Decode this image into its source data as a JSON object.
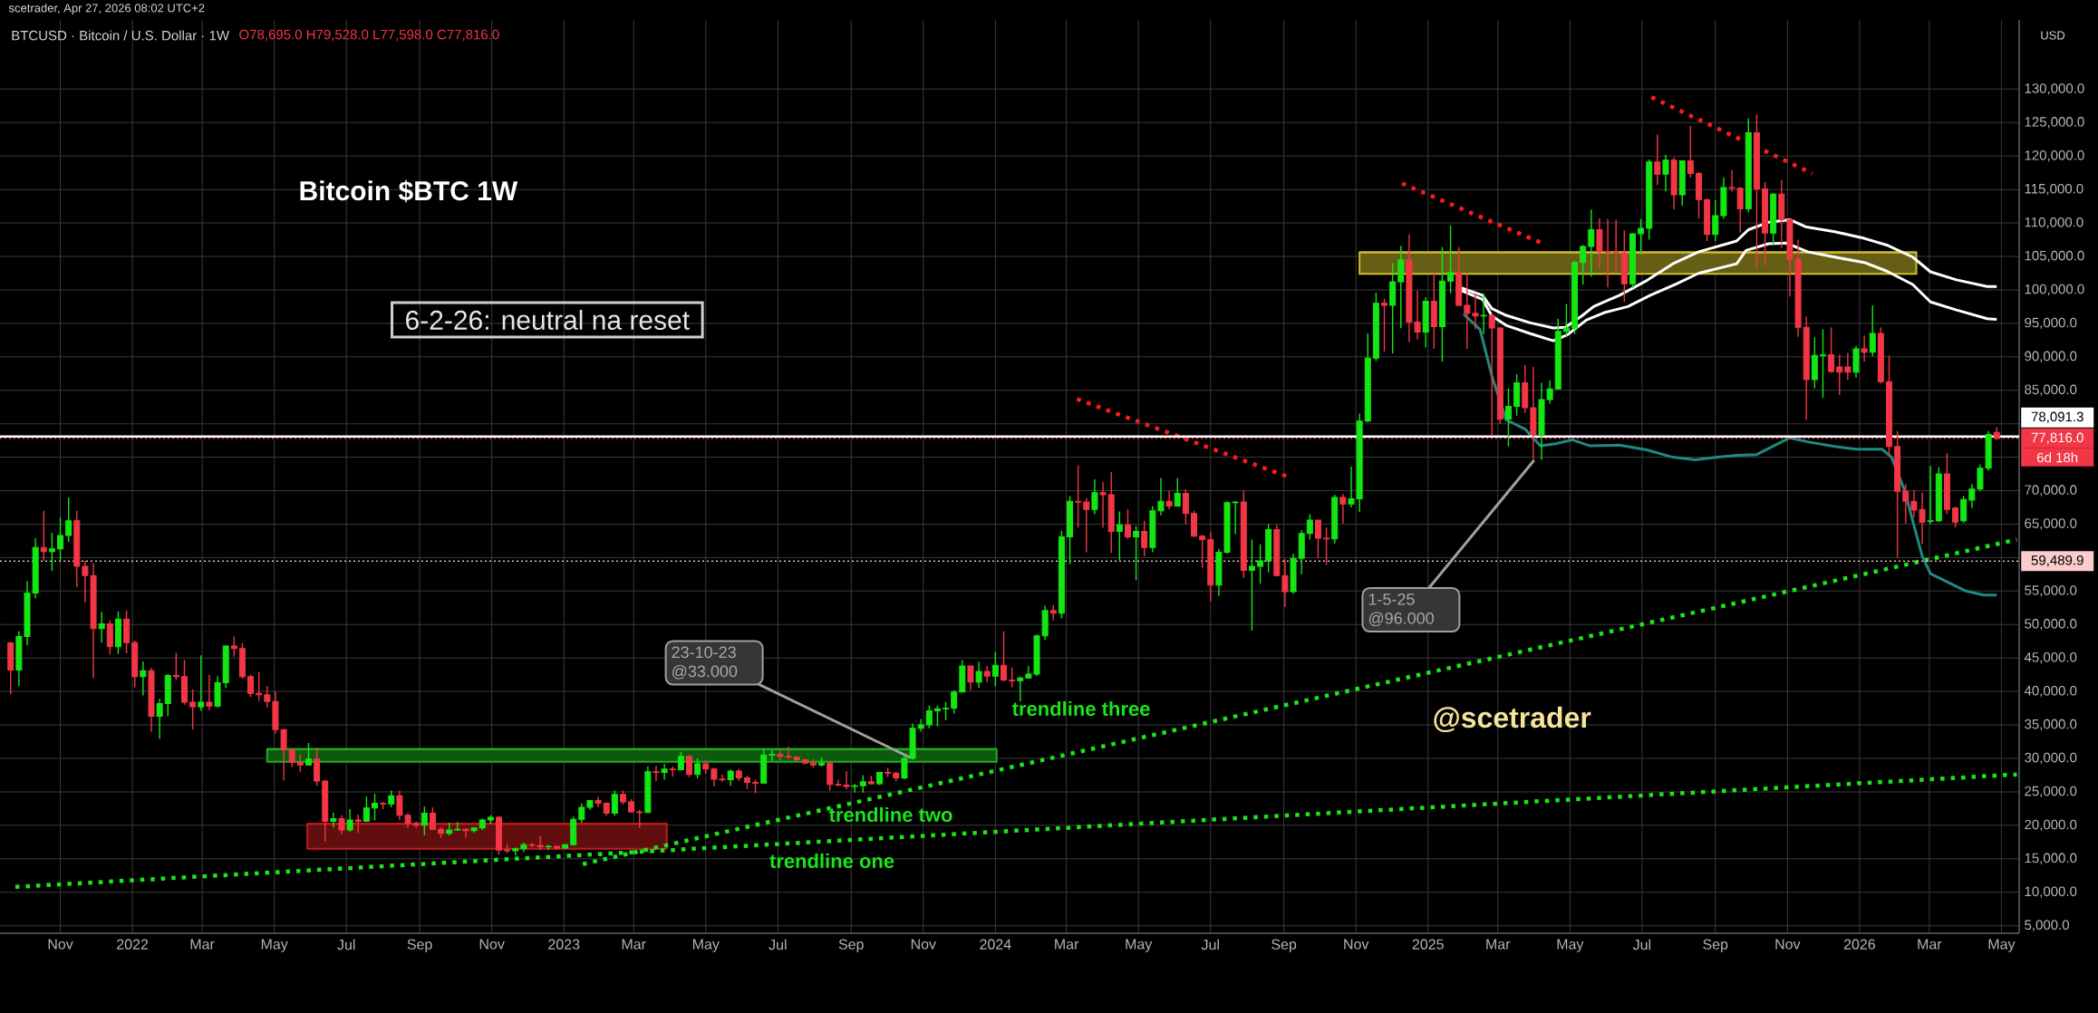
{
  "chart_data": {
    "type": "candlestick",
    "title": "BTCUSD · Bitcoin / U.S. Dollar · 1W",
    "subtitle": "O78,695.0 H79,528.0 L77,598.0 C77,816.0",
    "ylabel": "USD",
    "x": [
      "2021-09-20",
      "2021-09-27",
      "2021-10-04",
      "2021-10-11",
      "2021-10-18",
      "2021-10-25",
      "2021-11-01",
      "2021-11-08",
      "2021-11-15",
      "2021-11-22",
      "2021-11-29",
      "2021-12-06",
      "2021-12-13",
      "2021-12-20",
      "2021-12-27",
      "2022-01-03",
      "2022-01-10",
      "2022-01-17",
      "2022-01-24",
      "2022-01-31",
      "2022-02-07",
      "2022-02-14",
      "2022-02-21",
      "2022-02-28",
      "2022-03-07",
      "2022-03-14",
      "2022-03-21",
      "2022-03-28",
      "2022-04-04",
      "2022-04-11",
      "2022-04-18",
      "2022-04-25",
      "2022-05-02",
      "2022-05-09",
      "2022-05-16",
      "2022-05-23",
      "2022-05-30",
      "2022-06-06",
      "2022-06-13",
      "2022-06-20",
      "2022-06-27",
      "2022-07-04",
      "2022-07-11",
      "2022-07-18",
      "2022-07-25",
      "2022-08-01",
      "2022-08-08",
      "2022-08-15",
      "2022-08-22",
      "2022-08-29",
      "2022-09-05",
      "2022-09-12",
      "2022-09-19",
      "2022-09-26",
      "2022-10-03",
      "2022-10-10",
      "2022-10-17",
      "2022-10-24",
      "2022-10-31",
      "2022-11-07",
      "2022-11-14",
      "2022-11-21",
      "2022-11-28",
      "2022-12-05",
      "2022-12-12",
      "2022-12-19",
      "2022-12-26",
      "2023-01-02",
      "2023-01-09",
      "2023-01-16",
      "2023-01-23",
      "2023-01-30",
      "2023-02-06",
      "2023-02-13",
      "2023-02-20",
      "2023-02-27",
      "2023-03-06",
      "2023-03-13",
      "2023-03-20",
      "2023-03-27",
      "2023-04-03",
      "2023-04-10",
      "2023-04-17",
      "2023-04-24",
      "2023-05-01",
      "2023-05-08",
      "2023-05-15",
      "2023-05-22",
      "2023-05-29",
      "2023-06-05",
      "2023-06-12",
      "2023-06-19",
      "2023-06-26",
      "2023-07-03",
      "2023-07-10",
      "2023-07-17",
      "2023-07-24",
      "2023-07-31",
      "2023-08-07",
      "2023-08-14",
      "2023-08-21",
      "2023-08-28",
      "2023-09-04",
      "2023-09-11",
      "2023-09-18",
      "2023-09-25",
      "2023-10-02",
      "2023-10-09",
      "2023-10-16",
      "2023-10-23",
      "2023-10-30",
      "2023-11-06",
      "2023-11-13",
      "2023-11-20",
      "2023-11-27",
      "2023-12-04",
      "2023-12-11",
      "2023-12-18",
      "2023-12-25",
      "2024-01-01",
      "2024-01-08",
      "2024-01-15",
      "2024-01-22",
      "2024-01-29",
      "2024-02-05",
      "2024-02-12",
      "2024-02-19",
      "2024-02-26",
      "2024-03-04",
      "2024-03-11",
      "2024-03-18",
      "2024-03-25",
      "2024-04-01",
      "2024-04-08",
      "2024-04-15",
      "2024-04-22",
      "2024-04-29",
      "2024-05-06",
      "2024-05-13",
      "2024-05-20",
      "2024-05-27",
      "2024-06-03",
      "2024-06-10",
      "2024-06-17",
      "2024-06-24",
      "2024-07-01",
      "2024-07-08",
      "2024-07-15",
      "2024-07-22",
      "2024-07-29",
      "2024-08-05",
      "2024-08-12",
      "2024-08-19",
      "2024-08-26",
      "2024-09-02",
      "2024-09-09",
      "2024-09-16",
      "2024-09-23",
      "2024-09-30",
      "2024-10-07",
      "2024-10-14",
      "2024-10-21",
      "2024-10-28",
      "2024-11-04",
      "2024-11-11",
      "2024-11-18",
      "2024-11-25",
      "2024-12-02",
      "2024-12-09",
      "2024-12-16",
      "2024-12-23",
      "2024-12-30",
      "2025-01-06",
      "2025-01-13",
      "2025-01-20",
      "2025-01-27",
      "2025-02-03",
      "2025-02-10",
      "2025-02-17",
      "2025-02-24",
      "2025-03-03",
      "2025-03-10",
      "2025-03-17",
      "2025-03-24",
      "2025-03-31",
      "2025-04-07",
      "2025-04-14",
      "2025-04-21",
      "2025-04-28",
      "2025-05-05",
      "2025-05-12",
      "2025-05-19",
      "2025-05-26",
      "2025-06-02",
      "2025-06-09",
      "2025-06-16",
      "2025-06-23",
      "2025-06-30",
      "2025-07-07",
      "2025-07-14",
      "2025-07-21",
      "2025-07-28",
      "2025-08-04",
      "2025-08-11",
      "2025-08-18",
      "2025-08-25",
      "2025-09-01",
      "2025-09-08",
      "2025-09-15",
      "2025-09-22",
      "2025-09-29",
      "2025-10-06",
      "2025-10-13",
      "2025-10-20",
      "2025-10-27",
      "2025-11-03",
      "2025-11-10",
      "2025-11-17",
      "2025-11-24",
      "2025-12-01",
      "2025-12-08",
      "2025-12-15",
      "2025-12-22",
      "2025-12-29",
      "2026-01-05",
      "2026-01-12",
      "2026-01-19",
      "2026-01-26",
      "2026-02-02",
      "2026-02-09",
      "2026-02-16",
      "2026-02-23",
      "2026-03-02",
      "2026-03-09",
      "2026-03-16",
      "2026-03-23",
      "2026-03-30",
      "2026-04-06",
      "2026-04-13",
      "2026-04-20",
      "2026-04-27"
    ],
    "ohlc": [
      [
        47250,
        47400,
        39600,
        43200
      ],
      [
        43200,
        49000,
        40800,
        48200
      ],
      [
        48200,
        56500,
        46900,
        54700
      ],
      [
        54700,
        62900,
        53900,
        61500
      ],
      [
        61500,
        67000,
        59500,
        60900
      ],
      [
        60900,
        63700,
        58000,
        61300
      ],
      [
        61300,
        66000,
        59500,
        63300
      ],
      [
        63300,
        69000,
        62300,
        65500
      ],
      [
        65500,
        67000,
        55600,
        58700
      ],
      [
        58700,
        59500,
        53300,
        57300
      ],
      [
        57300,
        59200,
        42000,
        49400
      ],
      [
        49400,
        51900,
        47300,
        50100
      ],
      [
        50100,
        50600,
        45500,
        46700
      ],
      [
        46700,
        52000,
        45600,
        50800
      ],
      [
        50800,
        52100,
        45700,
        47300
      ],
      [
        47300,
        47600,
        40600,
        42200
      ],
      [
        42200,
        44500,
        39400,
        43100
      ],
      [
        43100,
        43500,
        34000,
        36300
      ],
      [
        36300,
        38900,
        32900,
        38200
      ],
      [
        38200,
        42600,
        36300,
        42400
      ],
      [
        42400,
        45800,
        41700,
        42200
      ],
      [
        42200,
        44700,
        38000,
        38400
      ],
      [
        38400,
        40300,
        34300,
        37700
      ],
      [
        37700,
        45400,
        37100,
        38400
      ],
      [
        38400,
        42500,
        37200,
        37800
      ],
      [
        37800,
        42300,
        37600,
        41300
      ],
      [
        41300,
        46900,
        40500,
        46800
      ],
      [
        46800,
        48200,
        45200,
        46400
      ],
      [
        46400,
        47200,
        41900,
        42200
      ],
      [
        42200,
        42500,
        39200,
        39700
      ],
      [
        39700,
        42900,
        38600,
        39500
      ],
      [
        39500,
        40800,
        37600,
        38500
      ],
      [
        38500,
        40000,
        33700,
        34300
      ],
      [
        34300,
        34400,
        26700,
        31300
      ],
      [
        31300,
        31300,
        28700,
        29400
      ],
      [
        29400,
        30600,
        28000,
        29000
      ],
      [
        29000,
        32300,
        29000,
        29900
      ],
      [
        29900,
        31600,
        25900,
        26600
      ],
      [
        26600,
        26700,
        17600,
        20600
      ],
      [
        20600,
        21900,
        19700,
        21000
      ],
      [
        21000,
        21500,
        18700,
        19300
      ],
      [
        19300,
        22400,
        19000,
        20800
      ],
      [
        20800,
        21600,
        18900,
        20600
      ],
      [
        20600,
        24300,
        20600,
        22600
      ],
      [
        22600,
        24700,
        20700,
        23300
      ],
      [
        23300,
        23500,
        22400,
        23200
      ],
      [
        23200,
        25200,
        22700,
        24400
      ],
      [
        24400,
        25200,
        20800,
        21500
      ],
      [
        21500,
        21800,
        19600,
        20300
      ],
      [
        20300,
        20600,
        19600,
        20000
      ],
      [
        20000,
        22800,
        18500,
        21800
      ],
      [
        21800,
        22700,
        19300,
        19400
      ],
      [
        19400,
        19700,
        18100,
        18800
      ],
      [
        18800,
        20400,
        18500,
        19300
      ],
      [
        19300,
        20500,
        19200,
        19400
      ],
      [
        19400,
        19600,
        18200,
        19200
      ],
      [
        19200,
        19700,
        18900,
        19600
      ],
      [
        19600,
        21000,
        19300,
        20800
      ],
      [
        20800,
        21500,
        20200,
        21200
      ],
      [
        21200,
        21400,
        15600,
        16300
      ],
      [
        16300,
        17200,
        15800,
        16200
      ],
      [
        16200,
        16700,
        15500,
        16500
      ],
      [
        16500,
        17400,
        16000,
        17100
      ],
      [
        17100,
        17400,
        16700,
        17000
      ],
      [
        17000,
        18400,
        16300,
        16800
      ],
      [
        16800,
        17100,
        16300,
        16850
      ],
      [
        16850,
        16900,
        16400,
        16600
      ],
      [
        16600,
        17200,
        16500,
        17100
      ],
      [
        17100,
        21300,
        17100,
        20900
      ],
      [
        20900,
        23300,
        20400,
        22700
      ],
      [
        22700,
        23800,
        22300,
        23700
      ],
      [
        23700,
        24200,
        22700,
        23300
      ],
      [
        23300,
        23400,
        21400,
        21800
      ],
      [
        21800,
        25200,
        21400,
        24600
      ],
      [
        24600,
        25200,
        23100,
        23500
      ],
      [
        23500,
        23900,
        21900,
        22000
      ],
      [
        22000,
        22300,
        19600,
        21900
      ],
      [
        21900,
        28800,
        21900,
        28000
      ],
      [
        28000,
        28900,
        26600,
        27900
      ],
      [
        27900,
        29200,
        26800,
        28400
      ],
      [
        28400,
        28800,
        27300,
        28300
      ],
      [
        28300,
        31000,
        28200,
        30300
      ],
      [
        30300,
        30500,
        27200,
        27600
      ],
      [
        27600,
        30000,
        27000,
        29200
      ],
      [
        29200,
        29800,
        27700,
        28400
      ],
      [
        28400,
        28600,
        25800,
        26900
      ],
      [
        26900,
        27600,
        26500,
        26800
      ],
      [
        26800,
        28300,
        25900,
        28100
      ],
      [
        28100,
        28400,
        26600,
        27100
      ],
      [
        27100,
        27400,
        25400,
        26400
      ],
      [
        26400,
        26800,
        24800,
        26300
      ],
      [
        26300,
        31400,
        26300,
        30500
      ],
      [
        30500,
        31300,
        29600,
        30600
      ],
      [
        30600,
        31400,
        29700,
        30300
      ],
      [
        30300,
        31800,
        29900,
        30200
      ],
      [
        30200,
        30300,
        29500,
        29800
      ],
      [
        29800,
        29900,
        29100,
        29300
      ],
      [
        29300,
        29900,
        28600,
        29000
      ],
      [
        29000,
        30200,
        28800,
        29300
      ],
      [
        29300,
        29500,
        25200,
        26100
      ],
      [
        26100,
        26800,
        25800,
        26000
      ],
      [
        26000,
        28100,
        25400,
        25800
      ],
      [
        25800,
        26200,
        24900,
        25900
      ],
      [
        25900,
        27500,
        24900,
        26500
      ],
      [
        26500,
        27400,
        26100,
        26200
      ],
      [
        26200,
        28000,
        26000,
        27900
      ],
      [
        27900,
        28600,
        27200,
        27800
      ],
      [
        27800,
        28000,
        26600,
        27100
      ],
      [
        27100,
        30400,
        26900,
        30000
      ],
      [
        30000,
        35200,
        29800,
        34500
      ],
      [
        34500,
        35900,
        34000,
        35000
      ],
      [
        35000,
        37900,
        34500,
        37100
      ],
      [
        37100,
        37900,
        34800,
        37400
      ],
      [
        37400,
        38400,
        35700,
        37500
      ],
      [
        37500,
        40200,
        36700,
        39900
      ],
      [
        39900,
        44700,
        39900,
        43800
      ],
      [
        43800,
        43800,
        40200,
        41400
      ],
      [
        41400,
        44400,
        40500,
        43000
      ],
      [
        43000,
        43800,
        41400,
        42300
      ],
      [
        42300,
        45900,
        40800,
        43900
      ],
      [
        43900,
        49000,
        41500,
        41700
      ],
      [
        41700,
        43600,
        40600,
        41600
      ],
      [
        41600,
        42200,
        38500,
        42000
      ],
      [
        42000,
        43800,
        41900,
        42600
      ],
      [
        42600,
        48500,
        42300,
        48300
      ],
      [
        48300,
        52800,
        47700,
        52100
      ],
      [
        52100,
        52900,
        50600,
        51700
      ],
      [
        51700,
        64000,
        50900,
        63100
      ],
      [
        63100,
        69200,
        59000,
        68400
      ],
      [
        68400,
        73800,
        64500,
        68300
      ],
      [
        68300,
        68900,
        60800,
        67200
      ],
      [
        67200,
        71700,
        66500,
        69700
      ],
      [
        69700,
        71300,
        64500,
        69400
      ],
      [
        69400,
        72800,
        60700,
        63900
      ],
      [
        63900,
        66900,
        59600,
        64900
      ],
      [
        64900,
        67200,
        62800,
        63100
      ],
      [
        63100,
        64700,
        56600,
        63900
      ],
      [
        63900,
        65500,
        60200,
        61500
      ],
      [
        61500,
        67700,
        60800,
        67000
      ],
      [
        67000,
        71900,
        66300,
        68400
      ],
      [
        68400,
        70000,
        67200,
        67700
      ],
      [
        67700,
        71900,
        67600,
        69600
      ],
      [
        69600,
        70200,
        65000,
        66600
      ],
      [
        66600,
        67000,
        63100,
        63200
      ],
      [
        63200,
        63400,
        58500,
        62700
      ],
      [
        62700,
        63800,
        53500,
        55900
      ],
      [
        55900,
        61300,
        54300,
        60800
      ],
      [
        60800,
        68400,
        60600,
        68200
      ],
      [
        68200,
        68400,
        63500,
        68300
      ],
      [
        68300,
        70000,
        57000,
        58100
      ],
      [
        58100,
        62700,
        49100,
        58700
      ],
      [
        58700,
        62000,
        56100,
        59500
      ],
      [
        59500,
        65000,
        57800,
        64200
      ],
      [
        64200,
        64900,
        57200,
        57300
      ],
      [
        57300,
        59800,
        52600,
        54900
      ],
      [
        54900,
        60600,
        54600,
        59900
      ],
      [
        59900,
        64100,
        57500,
        63600
      ],
      [
        63600,
        66500,
        62700,
        65600
      ],
      [
        65600,
        65600,
        59900,
        62900
      ],
      [
        62900,
        64500,
        58900,
        62800
      ],
      [
        62800,
        69400,
        62100,
        69000
      ],
      [
        69000,
        69500,
        65100,
        68000
      ],
      [
        68000,
        73600,
        67500,
        68800
      ],
      [
        68800,
        81500,
        66800,
        80400
      ],
      [
        80400,
        93500,
        80200,
        89800
      ],
      [
        89800,
        99600,
        89400,
        98000
      ],
      [
        98000,
        98700,
        90800,
        97700
      ],
      [
        97700,
        104000,
        90500,
        101200
      ],
      [
        101200,
        106600,
        94300,
        104500
      ],
      [
        104500,
        108300,
        92200,
        95200
      ],
      [
        95200,
        99900,
        92600,
        93700
      ],
      [
        93700,
        98900,
        91400,
        98300
      ],
      [
        98300,
        102700,
        91200,
        94500
      ],
      [
        94500,
        106400,
        89300,
        101300
      ],
      [
        101300,
        109600,
        99500,
        102600
      ],
      [
        102600,
        106400,
        97600,
        97700
      ],
      [
        97700,
        102500,
        91200,
        96500
      ],
      [
        96500,
        99500,
        94100,
        96100
      ],
      [
        96100,
        99500,
        93400,
        96200
      ],
      [
        96200,
        96500,
        78200,
        94300
      ],
      [
        94300,
        94400,
        80000,
        80700
      ],
      [
        80700,
        85300,
        76600,
        82600
      ],
      [
        82600,
        87400,
        81200,
        86100
      ],
      [
        86100,
        88800,
        81600,
        82400
      ],
      [
        82400,
        88500,
        74400,
        78400
      ],
      [
        78400,
        86100,
        74600,
        83600
      ],
      [
        83600,
        86500,
        83000,
        85200
      ],
      [
        85200,
        95700,
        85100,
        93800
      ],
      [
        93800,
        97900,
        92900,
        94300
      ],
      [
        94300,
        104300,
        93400,
        104100
      ],
      [
        104100,
        106700,
        100800,
        106500
      ],
      [
        106500,
        112000,
        102000,
        109000
      ],
      [
        109000,
        110700,
        103100,
        105700
      ],
      [
        105700,
        110600,
        100400,
        105600
      ],
      [
        105600,
        110500,
        102700,
        105500
      ],
      [
        105500,
        108900,
        98200,
        100900
      ],
      [
        100900,
        108500,
        100300,
        108400
      ],
      [
        108400,
        110600,
        105300,
        109200
      ],
      [
        109200,
        119500,
        107500,
        119100
      ],
      [
        119100,
        123200,
        115700,
        117300
      ],
      [
        117300,
        120200,
        114700,
        119400
      ],
      [
        119400,
        119800,
        112000,
        114200
      ],
      [
        114200,
        119300,
        112600,
        119300
      ],
      [
        119300,
        124500,
        116800,
        117400
      ],
      [
        117400,
        117600,
        110700,
        113500
      ],
      [
        113500,
        113600,
        107300,
        108300
      ],
      [
        108300,
        113400,
        107300,
        111100
      ],
      [
        111100,
        116800,
        110600,
        115300
      ],
      [
        115300,
        117900,
        114700,
        115200
      ],
      [
        115200,
        115400,
        108600,
        112100
      ],
      [
        112100,
        125600,
        111600,
        123500
      ],
      [
        123500,
        126200,
        103200,
        115100
      ],
      [
        115100,
        116100,
        103600,
        108500
      ],
      [
        108500,
        114500,
        106700,
        114300
      ],
      [
        114300,
        116400,
        106300,
        110500
      ],
      [
        110500,
        110800,
        99000,
        104600
      ],
      [
        104600,
        107500,
        93000,
        94400
      ],
      [
        94400,
        96000,
        80600,
        86600
      ],
      [
        86600,
        92900,
        85300,
        90200
      ],
      [
        90200,
        94100,
        83900,
        90300
      ],
      [
        90300,
        94400,
        87600,
        87800
      ],
      [
        88500,
        90300,
        84300,
        87700
      ],
      [
        88500,
        90600,
        86600,
        87700
      ],
      [
        87700,
        91600,
        86900,
        91200
      ],
      [
        91200,
        93200,
        89300,
        90700
      ],
      [
        90700,
        97700,
        90100,
        93500
      ],
      [
        93500,
        94400,
        86000,
        86300
      ],
      [
        86300,
        90200,
        75300,
        76600
      ],
      [
        76600,
        78900,
        60000,
        69900
      ],
      [
        69900,
        71000,
        65100,
        68400
      ],
      [
        68400,
        70100,
        66000,
        67100
      ],
      [
        67200,
        69700,
        62000,
        65300
      ],
      [
        65400,
        73700,
        65000,
        65500
      ],
      [
        65500,
        73500,
        65300,
        72500
      ],
      [
        72500,
        75600,
        66500,
        67200
      ],
      [
        67400,
        67600,
        64500,
        65300
      ],
      [
        65500,
        69200,
        65200,
        68700
      ],
      [
        68600,
        71000,
        67400,
        70250
      ],
      [
        70250,
        73900,
        70000,
        73350
      ],
      [
        73350,
        78900,
        73000,
        78400
      ],
      [
        78695,
        79528,
        77598,
        77816
      ]
    ],
    "colors": [
      "#f23645",
      "#14e614",
      "#14e614",
      "#14e614",
      "#f23645",
      "#14e614",
      "#14e614",
      "#14e614",
      "#f23645",
      "#f23645",
      "#f23645",
      "#14e614",
      "#f23645",
      "#14e614",
      "#f23645",
      "#f23645",
      "#14e614",
      "#f23645",
      "#14e614",
      "#14e614",
      "#f23645",
      "#f23645",
      "#f23645",
      "#14e614",
      "#f23645",
      "#14e614",
      "#14e614",
      "#f23645",
      "#f23645",
      "#f23645",
      "#f23645",
      "#f23645",
      "#f23645",
      "#f23645",
      "#f23645",
      "#f23645",
      "#14e614",
      "#f23645",
      "#f23645",
      "#14e614",
      "#f23645",
      "#14e614",
      "#f23645",
      "#14e614",
      "#14e614",
      "#f23645",
      "#14e614",
      "#f23645",
      "#f23645",
      "#f23645",
      "#14e614",
      "#f23645",
      "#f23645",
      "#14e614",
      "#14e614",
      "#f23645",
      "#14e614",
      "#14e614",
      "#14e614",
      "#f23645",
      "#f23645",
      "#14e614",
      "#14e614",
      "#f23645",
      "#f23645",
      "#14e614",
      "#f23645",
      "#14e614",
      "#14e614",
      "#14e614",
      "#14e614",
      "#f23645",
      "#f23645",
      "#14e614",
      "#f23645",
      "#f23645",
      "#f23645",
      "#14e614",
      "#f23645",
      "#14e614",
      "#f23645",
      "#14e614",
      "#f23645",
      "#14e614",
      "#f23645",
      "#f23645",
      "#f23645",
      "#14e614",
      "#f23645",
      "#f23645",
      "#f23645",
      "#14e614",
      "#14e614",
      "#f23645",
      "#f23645",
      "#f23645",
      "#f23645",
      "#f23645",
      "#14e614",
      "#f23645",
      "#f23645",
      "#f23645",
      "#14e614",
      "#14e614",
      "#f23645",
      "#14e614",
      "#f23645",
      "#f23645",
      "#14e614",
      "#14e614",
      "#14e614",
      "#14e614",
      "#14e614",
      "#14e614",
      "#14e614",
      "#14e614",
      "#f23645",
      "#14e614",
      "#f23645",
      "#14e614",
      "#f23645",
      "#f23645",
      "#14e614",
      "#14e614",
      "#14e614",
      "#14e614",
      "#f23645",
      "#14e614",
      "#14e614",
      "#f23645",
      "#f23645",
      "#14e614",
      "#f23645",
      "#f23645",
      "#14e614",
      "#f23645",
      "#14e614",
      "#f23645",
      "#14e614",
      "#14e614",
      "#f23645",
      "#14e614",
      "#f23645",
      "#f23645",
      "#f23645",
      "#f23645",
      "#14e614",
      "#14e614",
      "#14e614",
      "#f23645",
      "#14e614",
      "#14e614",
      "#14e614",
      "#f23645",
      "#f23645",
      "#14e614",
      "#14e614",
      "#14e614",
      "#f23645",
      "#f23645",
      "#14e614",
      "#f23645",
      "#14e614",
      "#14e614",
      "#14e614",
      "#14e614",
      "#f23645",
      "#14e614",
      "#14e614",
      "#f23645",
      "#f23645",
      "#14e614",
      "#f23645",
      "#14e614",
      "#14e614",
      "#f23645",
      "#f23645",
      "#f23645",
      "#14e614",
      "#f23645",
      "#f23645",
      "#14e614",
      "#14e614",
      "#f23645",
      "#f23645",
      "#14e614",
      "#14e614",
      "#14e614",
      "#14e614",
      "#14e614",
      "#14e614",
      "#14e614",
      "#f23645",
      "#f23645",
      "#f23645",
      "#f23645",
      "#14e614",
      "#14e614",
      "#14e614",
      "#f23645",
      "#14e614",
      "#f23645",
      "#14e614",
      "#f23645",
      "#f23645",
      "#f23645",
      "#14e614",
      "#14e614",
      "#f23645",
      "#f23645",
      "#14e614",
      "#f23645",
      "#f23645",
      "#14e614",
      "#f23645",
      "#f23645",
      "#f23645",
      "#f23645",
      "#14e614",
      "#14e614",
      "#f23645",
      "#f23645",
      "#f23645",
      "#14e614",
      "#f23645",
      "#14e614",
      "#f23645",
      "#f23645",
      "#f23645",
      "#f23645",
      "#f23645",
      "#f23645",
      "#14e614",
      "#14e614",
      "#f23645",
      "#f23645",
      "#14e614",
      "#14e614",
      "#14e614",
      "#14e614",
      "#f23645"
    ],
    "series": [
      {
        "type": "line",
        "color": "#1fb01f",
        "line_style": "solid",
        "x": [
          "2022-04-25",
          "2024-01-02"
        ],
        "values": [
          31400,
          31400
        ],
        "lower": [
          29500,
          29500
        ],
        "upper": [
          31400,
          31400
        ]
      },
      {
        "type": "line",
        "color": "#c01c1c",
        "line_style": "solid",
        "x": [
          "2022-05-29",
          "2023-03-29"
        ],
        "values": [
          20200,
          20200
        ],
        "lower": [
          16500,
          16500
        ],
        "upper": [
          20200,
          20200
        ]
      },
      {
        "type": "line",
        "color": "#cfbd2a",
        "line_style": "solid",
        "x": [
          "2024-11-04",
          "2026-02-18"
        ],
        "values": [
          105600,
          105600
        ],
        "lower": [
          102400,
          102400
        ],
        "upper": [
          105600,
          105600
        ]
      },
      {
        "type": "line",
        "color": "#19e619",
        "line_style": "dotted",
        "x": [
          "2021-09-24",
          "2026-05-14"
        ],
        "values": [
          10800,
          27600
        ]
      },
      {
        "type": "line",
        "color": "#19e619",
        "line_style": "dotted",
        "x": [
          "2023-01-17",
          "2026-05-14"
        ],
        "values": [
          14200,
          62700
        ]
      },
      {
        "type": "line",
        "color": "#ff1a1a",
        "line_style": "dotted",
        "x": [
          "2024-03-10",
          "2024-09-04"
        ],
        "values": [
          83700,
          72100
        ]
      },
      {
        "type": "line",
        "color": "#ff1a1a",
        "line_style": "dotted",
        "x": [
          "2024-12-10",
          "2025-04-10"
        ],
        "values": [
          115900,
          106800
        ]
      },
      {
        "type": "line",
        "color": "#ff1a1a",
        "line_style": "dotted",
        "x": [
          "2025-07-09",
          "2025-11-22"
        ],
        "values": [
          128800,
          117400
        ]
      },
      {
        "type": "line",
        "color": "#ffffff",
        "line_style": "solid",
        "x": [
          "2025-01-29",
          "2025-02-16",
          "2025-02-24",
          "2025-03-08",
          "2025-03-28",
          "2025-04-17",
          "2025-04-27",
          "2025-05-11",
          "2025-05-21",
          "2025-06-12",
          "2025-07-05",
          "2025-07-27",
          "2025-08-18",
          "2025-09-19",
          "2025-09-29",
          "2025-10-16",
          "2025-11-03",
          "2025-11-17",
          "2025-12-11",
          "2026-01-05",
          "2026-01-24",
          "2026-02-15",
          "2026-03-02",
          "2026-03-24",
          "2026-04-19",
          "2026-04-27"
        ],
        "values": [
          100300,
          99200,
          97200,
          96200,
          95100,
          94300,
          94400,
          96100,
          97500,
          99200,
          101400,
          103900,
          105700,
          107300,
          109000,
          110100,
          110500,
          109400,
          108700,
          107700,
          106700,
          104900,
          102700,
          101500,
          100500,
          100500
        ]
      },
      {
        "type": "line",
        "color": "#ffffff",
        "line_style": "solid",
        "x": [
          "2025-01-29",
          "2025-02-16",
          "2025-02-24",
          "2025-03-08",
          "2025-03-28",
          "2025-04-17",
          "2025-04-29",
          "2025-05-15",
          "2025-05-30",
          "2025-06-19",
          "2025-07-08",
          "2025-07-30",
          "2025-08-18",
          "2025-09-19",
          "2025-09-27",
          "2025-10-16",
          "2025-10-31",
          "2025-11-18",
          "2025-12-11",
          "2026-01-05",
          "2026-01-24",
          "2026-02-15",
          "2026-03-02",
          "2026-03-24",
          "2026-04-19",
          "2026-04-27"
        ],
        "values": [
          99900,
          98600,
          96100,
          94700,
          93500,
          92400,
          93300,
          95500,
          96600,
          97500,
          99200,
          100900,
          102500,
          103900,
          105900,
          106900,
          107000,
          105700,
          104900,
          104100,
          102800,
          100800,
          98200,
          97000,
          95700,
          95600
        ]
      },
      {
        "type": "line",
        "color": "#1f8a80",
        "line_style": "solid",
        "x": [
          "2025-01-31",
          "2025-02-14",
          "2025-02-24",
          "2025-03-08",
          "2025-03-24",
          "2025-04-06",
          "2025-04-19",
          "2025-05-03",
          "2025-05-18",
          "2025-06-12",
          "2025-07-05",
          "2025-07-27",
          "2025-08-15",
          "2025-09-03",
          "2025-09-19",
          "2025-10-06",
          "2025-11-03",
          "2025-11-18",
          "2025-12-11",
          "2025-12-29",
          "2026-01-20",
          "2026-01-28",
          "2026-02-08",
          "2026-02-23",
          "2026-03-02",
          "2026-03-17",
          "2026-04-01",
          "2026-04-16",
          "2026-04-27"
        ],
        "values": [
          96400,
          94100,
          87100,
          80600,
          79200,
          76700,
          77000,
          77600,
          76700,
          76800,
          76100,
          75000,
          74600,
          75000,
          75300,
          75400,
          77900,
          77300,
          76600,
          76200,
          76200,
          75000,
          70100,
          60200,
          57600,
          56300,
          55000,
          54400,
          54400
        ]
      }
    ],
    "xlim": [
      "2021-09-11",
      "2026-05-16"
    ],
    "xticks": [
      {
        "value": "2021-11-01",
        "label": "Nov"
      },
      {
        "value": "2022-01-01",
        "label": "2022"
      },
      {
        "value": "2022-03-01",
        "label": "Mar"
      },
      {
        "value": "2022-05-01",
        "label": "May"
      },
      {
        "value": "2022-07-01",
        "label": "Jul"
      },
      {
        "value": "2022-09-01",
        "label": "Sep"
      },
      {
        "value": "2022-11-01",
        "label": "Nov"
      },
      {
        "value": "2023-01-01",
        "label": "2023"
      },
      {
        "value": "2023-03-01",
        "label": "Mar"
      },
      {
        "value": "2023-05-01",
        "label": "May"
      },
      {
        "value": "2023-07-01",
        "label": "Jul"
      },
      {
        "value": "2023-09-01",
        "label": "Sep"
      },
      {
        "value": "2023-11-01",
        "label": "Nov"
      },
      {
        "value": "2024-01-01",
        "label": "2024"
      },
      {
        "value": "2024-03-01",
        "label": "Mar"
      },
      {
        "value": "2024-05-01",
        "label": "May"
      },
      {
        "value": "2024-07-01",
        "label": "Jul"
      },
      {
        "value": "2024-09-01",
        "label": "Sep"
      },
      {
        "value": "2024-11-01",
        "label": "Nov"
      },
      {
        "value": "2025-01-01",
        "label": "2025"
      },
      {
        "value": "2025-03-01",
        "label": "Mar"
      },
      {
        "value": "2025-05-01",
        "label": "May"
      },
      {
        "value": "2025-07-01",
        "label": "Jul"
      },
      {
        "value": "2025-09-01",
        "label": "Sep"
      },
      {
        "value": "2025-11-01",
        "label": "Nov"
      },
      {
        "value": "2026-01-01",
        "label": "2026"
      },
      {
        "value": "2026-03-01",
        "label": "Mar"
      },
      {
        "value": "2026-05-01",
        "label": "May"
      }
    ],
    "ylim": [
      3870,
      140340
    ],
    "yticks": [
      {
        "value": 5000,
        "label": "5,000.0"
      },
      {
        "value": 10000,
        "label": "10,000.0"
      },
      {
        "value": 15000,
        "label": "15,000.0"
      },
      {
        "value": 20000,
        "label": "20,000.0"
      },
      {
        "value": 25000,
        "label": "25,000.0"
      },
      {
        "value": 30000,
        "label": "30,000.0"
      },
      {
        "value": 35000,
        "label": "35,000.0"
      },
      {
        "value": 40000,
        "label": "40,000.0"
      },
      {
        "value": 45000,
        "label": "45,000.0"
      },
      {
        "value": 50000,
        "label": "50,000.0"
      },
      {
        "value": 55000,
        "label": "55,000.0"
      },
      {
        "value": 60000,
        "label": null
      },
      {
        "value": 65000,
        "label": "65,000.0"
      },
      {
        "value": 70000,
        "label": "70,000.0"
      },
      {
        "value": 75000,
        "label": null
      },
      {
        "value": 80000,
        "label": null
      },
      {
        "value": 85000,
        "label": "85,000.0"
      },
      {
        "value": 90000,
        "label": "90,000.0"
      },
      {
        "value": 95000,
        "label": "95,000.0"
      },
      {
        "value": 100000,
        "label": "100,000.0"
      },
      {
        "value": 105000,
        "label": "105,000.0"
      },
      {
        "value": 110000,
        "label": "110,000.0"
      },
      {
        "value": 115000,
        "label": "115,000.0"
      },
      {
        "value": 120000,
        "label": "120,000.0"
      },
      {
        "value": 125000,
        "label": "125,000.0"
      },
      {
        "value": 130000,
        "label": "130,000.0"
      }
    ],
    "grid": true,
    "ref_lines": [
      {
        "axis": "y",
        "value": 78091.3,
        "label": "78,091.3",
        "color": "#ffffff",
        "line_style": "solid"
      },
      {
        "axis": "y",
        "value": 77816.0,
        "label": "77,816.0",
        "color": "#f23645",
        "line_style": "dotted"
      },
      {
        "axis": "y",
        "value": 59489.9,
        "label": "59,489.9",
        "color": "#fccbcd",
        "line_style": "dotted"
      }
    ],
    "annotations": [
      "scetrader, Apr 27, 2026 08:02 UTC+2",
      "Bitcoin $BTC 1W",
      "6-2-26: neutral na reset",
      "@scetrader",
      "6d 18h",
      {
        "text": "23-10-23 @33.000",
        "x": "2023-10-20",
        "y": 30200
      },
      {
        "text": "1-5-25 @96.000",
        "x": "2025-03-31",
        "y": 74400
      },
      "trendline one",
      "trendline two",
      "trendline three"
    ]
  }
}
